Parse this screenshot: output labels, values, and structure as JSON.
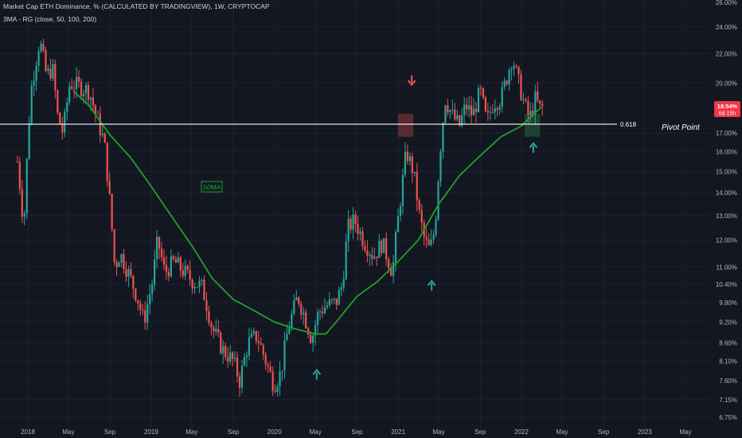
{
  "header": {
    "title": "Market Cap ETH Dominance, % (CALCULATED BY TRADINGVIEW), 1W, CRYPTOCAP",
    "indicator": "3MA - RG (close, 50, 100, 200)"
  },
  "colors": {
    "background": "#131722",
    "grid": "#1e222d",
    "up": "#26a69a",
    "down": "#ef5350",
    "ma": "#1fa22a",
    "level_line": "#ffffff",
    "price_badge": "#f23645"
  },
  "annotations": {
    "level_label": "0.618",
    "pivot_label": "Pivot Point",
    "ma_label": "50MA",
    "price_badge_value": "18.54%",
    "price_badge_countdown": "6d 15h"
  },
  "chart_data": {
    "type": "candlestick",
    "scale": "log",
    "y_unit": "%",
    "ylim": [
      6.6,
      26.5
    ],
    "x_range": [
      "2017-11",
      "2023-07"
    ],
    "y_ticks": [
      "26.00%",
      "24.00%",
      "22.00%",
      "20.00%",
      "18.54%",
      "17.00%",
      "16.00%",
      "15.00%",
      "14.00%",
      "13.00%",
      "12.00%",
      "11.00%",
      "10.40%",
      "9.80%",
      "9.20%",
      "8.60%",
      "8.10%",
      "7.60%",
      "7.15%",
      "6.75%"
    ],
    "x_ticks": [
      "2018",
      "May",
      "Sep",
      "2019",
      "May",
      "Sep",
      "2020",
      "May",
      "Sep",
      "2021",
      "May",
      "Sep",
      "2022",
      "May",
      "Sep",
      "2023",
      "May"
    ],
    "close_path": [
      [
        "2017-12-01",
        15.5
      ],
      [
        "2017-12-20",
        12.5
      ],
      [
        "2018-01-10",
        19.5
      ],
      [
        "2018-02-05",
        23.0
      ],
      [
        "2018-02-25",
        20.5
      ],
      [
        "2018-03-15",
        21.0
      ],
      [
        "2018-03-30",
        18.0
      ],
      [
        "2018-04-15",
        17.0
      ],
      [
        "2018-05-05",
        20.0
      ],
      [
        "2018-06-01",
        19.8
      ],
      [
        "2018-07-01",
        19.5
      ],
      [
        "2018-07-25",
        17.8
      ],
      [
        "2018-08-15",
        16.5
      ],
      [
        "2018-09-01",
        13.5
      ],
      [
        "2018-09-15",
        11.0
      ],
      [
        "2018-10-01",
        11.5
      ],
      [
        "2018-10-25",
        10.8
      ],
      [
        "2018-11-20",
        10.0
      ],
      [
        "2018-12-10",
        9.2
      ],
      [
        "2019-01-05",
        10.5
      ],
      [
        "2019-01-20",
        12.0
      ],
      [
        "2019-02-10",
        10.8
      ],
      [
        "2019-03-10",
        11.2
      ],
      [
        "2019-04-10",
        10.8
      ],
      [
        "2019-05-05",
        10.5
      ],
      [
        "2019-06-01",
        10.3
      ],
      [
        "2019-07-01",
        9.0
      ],
      [
        "2019-08-01",
        8.4
      ],
      [
        "2019-09-01",
        8.1
      ],
      [
        "2019-09-20",
        7.6
      ],
      [
        "2019-10-15",
        8.6
      ],
      [
        "2019-11-10",
        8.8
      ],
      [
        "2019-12-10",
        8.0
      ],
      [
        "2019-12-30",
        7.5
      ],
      [
        "2020-01-20",
        7.8
      ],
      [
        "2020-02-10",
        9.0
      ],
      [
        "2020-03-10",
        10.0
      ],
      [
        "2020-04-01",
        9.3
      ],
      [
        "2020-04-20",
        8.7
      ],
      [
        "2020-05-10",
        9.5
      ],
      [
        "2020-06-01",
        9.7
      ],
      [
        "2020-07-01",
        9.8
      ],
      [
        "2020-07-20",
        10.4
      ],
      [
        "2020-08-05",
        12.5
      ],
      [
        "2020-08-25",
        12.8
      ],
      [
        "2020-09-20",
        12.0
      ],
      [
        "2020-10-20",
        11.4
      ],
      [
        "2020-11-15",
        11.9
      ],
      [
        "2020-12-15",
        10.8
      ],
      [
        "2021-01-10",
        14.0
      ],
      [
        "2021-01-25",
        16.0
      ],
      [
        "2021-02-15",
        15.0
      ],
      [
        "2021-03-05",
        13.0
      ],
      [
        "2021-03-20",
        12.0
      ],
      [
        "2021-04-05",
        11.6
      ],
      [
        "2021-04-20",
        12.5
      ],
      [
        "2021-05-05",
        16.0
      ],
      [
        "2021-05-20",
        19.0
      ],
      [
        "2021-06-10",
        18.0
      ],
      [
        "2021-07-01",
        17.4
      ],
      [
        "2021-07-20",
        18.6
      ],
      [
        "2021-08-10",
        18.0
      ],
      [
        "2021-09-01",
        19.5
      ],
      [
        "2021-09-20",
        17.6
      ],
      [
        "2021-10-10",
        18.8
      ],
      [
        "2021-11-01",
        19.0
      ],
      [
        "2021-11-20",
        20.5
      ],
      [
        "2021-12-05",
        21.8
      ],
      [
        "2021-12-20",
        20.3
      ],
      [
        "2022-01-10",
        18.6
      ],
      [
        "2022-01-25",
        17.8
      ],
      [
        "2022-02-10",
        19.0
      ],
      [
        "2022-02-25",
        18.4
      ],
      [
        "2022-03-10",
        18.54
      ]
    ],
    "ma50_path": [
      [
        "2018-05-15",
        19.5
      ],
      [
        "2018-07-01",
        18.6
      ],
      [
        "2018-09-01",
        16.9
      ],
      [
        "2018-11-01",
        15.7
      ],
      [
        "2019-01-01",
        14.3
      ],
      [
        "2019-03-01",
        13.0
      ],
      [
        "2019-05-01",
        11.8
      ],
      [
        "2019-07-01",
        10.6
      ],
      [
        "2019-09-01",
        9.9
      ],
      [
        "2019-11-01",
        9.55
      ],
      [
        "2020-01-01",
        9.2
      ],
      [
        "2020-03-01",
        9.0
      ],
      [
        "2020-05-01",
        8.85
      ],
      [
        "2020-06-01",
        8.85
      ],
      [
        "2020-07-01",
        9.2
      ],
      [
        "2020-09-01",
        10.0
      ],
      [
        "2020-11-01",
        10.5
      ],
      [
        "2021-01-01",
        11.2
      ],
      [
        "2021-03-01",
        12.0
      ],
      [
        "2021-05-01",
        13.5
      ],
      [
        "2021-07-01",
        14.8
      ],
      [
        "2021-09-01",
        15.8
      ],
      [
        "2021-11-01",
        16.8
      ],
      [
        "2022-01-01",
        17.4
      ],
      [
        "2022-02-01",
        18.0
      ],
      [
        "2022-03-01",
        18.5
      ]
    ],
    "levels": [
      {
        "label": "0.618",
        "value": 17.5
      }
    ],
    "zones": [
      {
        "kind": "resistance",
        "x": [
          "2021-01-01",
          "2021-02-15"
        ],
        "y": [
          16.8,
          18.1
        ]
      },
      {
        "kind": "support",
        "x": [
          "2022-01-10",
          "2022-02-25"
        ],
        "y": [
          16.8,
          18.1
        ]
      }
    ],
    "arrows": [
      {
        "direction": "down",
        "date": "2021-02-10",
        "value": 20.2
      },
      {
        "direction": "up",
        "date": "2020-05-05",
        "value": 7.75
      },
      {
        "direction": "up",
        "date": "2021-04-10",
        "value": 10.35
      },
      {
        "direction": "up",
        "date": "2022-02-05",
        "value": 16.2
      }
    ]
  }
}
